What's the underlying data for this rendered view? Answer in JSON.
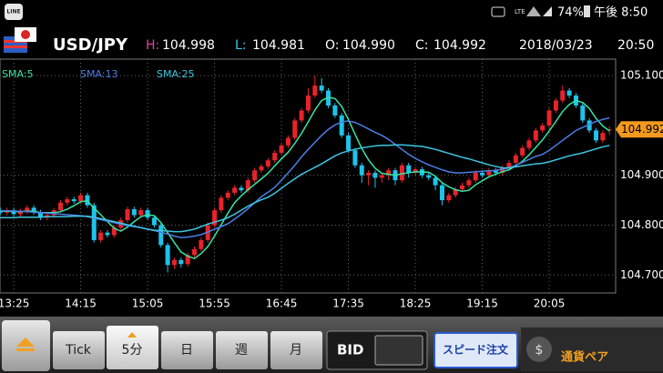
{
  "status_bar": {
    "app": "LINE",
    "battery": "74%",
    "time": "午後 8:50"
  },
  "header": {
    "pair": "USD/JPY",
    "high": {
      "label": "H:",
      "value": "104.998"
    },
    "low": {
      "label": "L:",
      "value": "104.981"
    },
    "open": {
      "label": "O:",
      "value": "104.990"
    },
    "close": {
      "label": "C:",
      "value": "104.992"
    },
    "date": "2018/03/23",
    "time": "20:50"
  },
  "chart_data": {
    "type": "candlestick",
    "categories": [
      null,
      null,
      "13:25",
      null,
      null,
      null,
      null,
      null,
      null,
      null,
      null,
      null,
      "14:15",
      null,
      null,
      null,
      null,
      null,
      null,
      null,
      null,
      null,
      "15:05",
      null,
      null,
      null,
      null,
      null,
      null,
      null,
      null,
      null,
      "15:55",
      null,
      null,
      null,
      null,
      null,
      null,
      null,
      null,
      null,
      "16:45",
      null,
      null,
      null,
      null,
      null,
      null,
      null,
      null,
      null,
      "17:35",
      null,
      null,
      null,
      null,
      null,
      null,
      null,
      null,
      null,
      "18:25",
      null,
      null,
      null,
      null,
      null,
      null,
      null,
      null,
      null,
      "19:15",
      null,
      null,
      null,
      null,
      null,
      null,
      null,
      null,
      null,
      "20:05",
      null,
      null,
      null,
      null,
      null,
      null,
      null,
      null,
      null
    ],
    "open": [
      104.83,
      104.825,
      104.83,
      104.822,
      104.828,
      104.835,
      104.826,
      104.815,
      104.82,
      104.83,
      104.845,
      104.852,
      104.848,
      104.86,
      104.84,
      104.77,
      104.785,
      104.78,
      104.795,
      104.81,
      104.832,
      104.82,
      104.83,
      104.815,
      104.8,
      104.76,
      104.72,
      104.73,
      104.722,
      104.74,
      104.752,
      104.77,
      104.8,
      104.83,
      104.855,
      104.865,
      104.875,
      104.87,
      104.89,
      104.91,
      104.918,
      104.93,
      104.945,
      104.96,
      104.975,
      105.01,
      105.03,
      105.06,
      105.08,
      105.07,
      105.04,
      105.02,
      104.98,
      104.95,
      104.92,
      104.9,
      104.905,
      104.895,
      104.9,
      104.91,
      104.89,
      104.92,
      104.905,
      104.912,
      104.9,
      104.895,
      104.88,
      104.85,
      104.86,
      104.872,
      104.88,
      104.89,
      104.905,
      104.9,
      104.91,
      104.905,
      104.915,
      104.925,
      104.94,
      104.955,
      104.97,
      104.99,
      105,
      105.03,
      105.05,
      105.07,
      105.06,
      105.04,
      105.01,
      104.99,
      104.97,
      104.99
    ],
    "high": [
      104.835,
      104.835,
      104.835,
      104.833,
      104.84,
      104.84,
      104.831,
      104.825,
      104.835,
      104.85,
      104.857,
      104.857,
      104.865,
      104.865,
      104.845,
      104.79,
      104.79,
      104.8,
      104.815,
      104.837,
      104.837,
      104.835,
      104.835,
      104.82,
      104.805,
      104.765,
      104.735,
      104.735,
      104.745,
      104.757,
      104.775,
      104.805,
      104.835,
      104.86,
      104.87,
      104.88,
      104.88,
      104.895,
      104.915,
      104.923,
      104.935,
      104.95,
      104.965,
      104.98,
      105.015,
      105.035,
      105.075,
      105.1,
      105.095,
      105.075,
      105.045,
      105.025,
      104.985,
      104.955,
      104.925,
      104.91,
      104.91,
      104.905,
      104.915,
      104.915,
      104.925,
      104.925,
      104.917,
      104.917,
      104.905,
      104.9,
      104.885,
      104.865,
      104.877,
      104.885,
      104.895,
      104.91,
      104.91,
      104.915,
      104.915,
      104.92,
      104.93,
      104.945,
      104.96,
      104.975,
      104.995,
      105.005,
      105.035,
      105.055,
      105.08,
      105.075,
      105.065,
      105.045,
      105.015,
      104.995,
      104.99,
      104.998
    ],
    "low": [
      104.82,
      104.82,
      104.817,
      104.817,
      104.823,
      104.821,
      104.81,
      104.81,
      104.815,
      104.825,
      104.84,
      104.843,
      104.843,
      104.835,
      104.765,
      104.765,
      104.775,
      104.775,
      104.79,
      104.805,
      104.815,
      104.815,
      104.81,
      104.795,
      104.755,
      104.705,
      104.712,
      104.715,
      104.717,
      104.735,
      104.747,
      104.765,
      104.795,
      104.825,
      104.85,
      104.86,
      104.865,
      104.865,
      104.885,
      104.905,
      104.913,
      104.925,
      104.94,
      104.955,
      104.97,
      105.005,
      105.025,
      105.055,
      105.065,
      105.035,
      105.015,
      104.975,
      104.945,
      104.915,
      104.885,
      104.88,
      104.875,
      104.885,
      104.89,
      104.88,
      104.885,
      104.895,
      104.9,
      104.895,
      104.89,
      104.87,
      104.84,
      104.845,
      104.855,
      104.867,
      104.875,
      104.885,
      104.895,
      104.895,
      104.9,
      104.9,
      104.91,
      104.92,
      104.935,
      104.95,
      104.965,
      104.985,
      104.995,
      105.025,
      105.045,
      105.055,
      105.035,
      105.005,
      104.985,
      104.965,
      104.965,
      104.981
    ],
    "close": [
      104.825,
      104.83,
      104.822,
      104.828,
      104.835,
      104.826,
      104.815,
      104.82,
      104.83,
      104.845,
      104.852,
      104.848,
      104.86,
      104.84,
      104.77,
      104.785,
      104.78,
      104.795,
      104.81,
      104.832,
      104.82,
      104.83,
      104.815,
      104.8,
      104.76,
      104.72,
      104.73,
      104.722,
      104.74,
      104.752,
      104.77,
      104.8,
      104.83,
      104.855,
      104.865,
      104.875,
      104.87,
      104.89,
      104.91,
      104.918,
      104.93,
      104.945,
      104.96,
      104.975,
      105.01,
      105.03,
      105.06,
      105.08,
      105.07,
      105.04,
      105.02,
      104.98,
      104.95,
      104.92,
      104.9,
      104.905,
      104.895,
      104.9,
      104.91,
      104.89,
      104.92,
      104.905,
      104.912,
      104.9,
      104.895,
      104.88,
      104.85,
      104.86,
      104.872,
      104.88,
      104.89,
      104.905,
      104.9,
      104.91,
      104.905,
      104.915,
      104.925,
      104.94,
      104.955,
      104.97,
      104.99,
      105,
      105.03,
      105.05,
      105.07,
      105.06,
      105.04,
      105.01,
      104.99,
      104.97,
      104.985,
      104.992
    ],
    "up_color": "#e8232b",
    "down_color": "#1ec3ea",
    "sma": [
      {
        "name": "SMA:5",
        "color": "#35e6a4",
        "values": [
          104.828,
          104.828,
          104.827,
          104.827,
          104.828,
          104.828,
          104.825,
          104.825,
          104.825,
          104.827,
          104.832,
          104.839,
          104.847,
          104.849,
          104.834,
          104.821,
          104.807,
          104.794,
          104.788,
          104.796,
          104.807,
          104.817,
          104.821,
          104.819,
          104.805,
          104.785,
          104.765,
          104.746,
          104.738,
          104.733,
          104.743,
          104.757,
          104.778,
          104.801,
          104.824,
          104.845,
          104.859,
          104.871,
          104.882,
          104.893,
          104.904,
          104.919,
          104.933,
          104.946,
          104.964,
          104.984,
          105.007,
          105.031,
          105.05,
          105.056,
          105.054,
          105.038,
          105.012,
          104.982,
          104.954,
          104.931,
          104.914,
          104.904,
          104.902,
          104.9,
          104.903,
          104.905,
          104.907,
          104.907,
          104.906,
          104.898,
          104.885,
          104.877,
          104.871,
          104.868,
          104.87,
          104.881,
          104.889,
          104.897,
          104.902,
          104.907,
          104.911,
          104.919,
          104.928,
          104.941,
          104.956,
          104.971,
          104.989,
          105.008,
          105.028,
          105.042,
          105.05,
          105.046,
          105.034,
          105.014,
          104.999,
          104.989
        ]
      },
      {
        "name": "SMA:13",
        "color": "#4d7ee6",
        "values": [
          104.829,
          104.829,
          104.828,
          104.828,
          104.827,
          104.826,
          104.825,
          104.824,
          104.823,
          104.822,
          104.821,
          104.82,
          104.819,
          104.817,
          104.814,
          104.811,
          104.808,
          104.805,
          104.802,
          104.799,
          104.797,
          104.795,
          104.792,
          104.789,
          104.786,
          104.782,
          104.778,
          104.775,
          104.776,
          104.778,
          104.781,
          104.786,
          104.792,
          104.797,
          104.803,
          104.812,
          104.822,
          104.833,
          104.845,
          104.857,
          104.866,
          104.876,
          104.89,
          104.905,
          104.92,
          104.937,
          104.952,
          104.966,
          104.98,
          104.992,
          105.001,
          105.007,
          105.009,
          105.006,
          105,
          104.993,
          104.986,
          104.98,
          104.972,
          104.962,
          104.952,
          104.942,
          104.934,
          104.927,
          104.921,
          104.916,
          104.911,
          104.907,
          104.905,
          104.905,
          104.906,
          104.907,
          104.908,
          104.909,
          104.91,
          104.912,
          104.915,
          104.92,
          104.926,
          104.932,
          104.938,
          104.942,
          104.95,
          104.96,
          104.97,
          104.98,
          104.99,
          104.996,
          105.002,
          105.008,
          105.012,
          105.015
        ]
      },
      {
        "name": "SMA:25",
        "color": "#3cc6e0",
        "values": [
          104.815,
          104.815,
          104.815,
          104.816,
          104.816,
          104.816,
          104.816,
          104.817,
          104.817,
          104.817,
          104.817,
          104.818,
          104.818,
          104.818,
          104.816,
          104.813,
          104.81,
          104.807,
          104.804,
          104.801,
          104.798,
          104.795,
          104.792,
          104.79,
          104.789,
          104.788,
          104.787,
          104.787,
          104.789,
          104.792,
          104.797,
          104.802,
          104.806,
          104.81,
          104.815,
          104.822,
          104.83,
          104.838,
          104.845,
          104.851,
          104.856,
          104.864,
          104.874,
          104.884,
          104.893,
          104.902,
          104.909,
          104.916,
          104.923,
          104.931,
          104.939,
          104.945,
          104.949,
          104.952,
          104.955,
          104.957,
          104.959,
          104.96,
          104.96,
          104.961,
          104.961,
          104.96,
          104.959,
          104.958,
          104.955,
          104.952,
          104.948,
          104.944,
          104.94,
          104.936,
          104.933,
          104.929,
          104.925,
          104.921,
          104.918,
          104.915,
          104.915,
          104.917,
          104.919,
          104.921,
          104.923,
          104.924,
          104.927,
          104.931,
          104.935,
          104.939,
          104.942,
          104.945,
          104.949,
          104.953,
          104.957,
          104.96
        ]
      }
    ],
    "ylim": [
      104.664,
      105.133
    ],
    "yticks": [
      {
        "value": 104.7,
        "label": "104.700"
      },
      {
        "value": 104.8,
        "label": "104.800"
      },
      {
        "value": 104.9,
        "label": "104.900"
      },
      {
        "value": 105.1,
        "label": "105.100"
      }
    ],
    "grid": true
  },
  "toolbar": {
    "tick": "Tick",
    "five_min": "5分",
    "day": "日",
    "week": "週",
    "month": "月",
    "bid": "BID",
    "speed_order": "スピード注文",
    "currency_pair": "通貨ペア"
  }
}
